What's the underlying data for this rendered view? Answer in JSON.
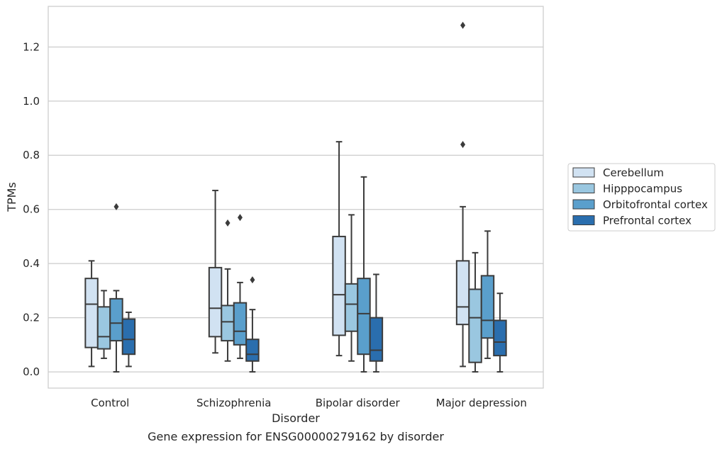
{
  "caption": "Gene expression for ENSG00000279162 by disorder",
  "chart_data": {
    "type": "box",
    "xlabel": "Disorder",
    "ylabel": "TPMs",
    "ylim": [
      -0.06,
      1.35
    ],
    "yticks": [
      "0.0",
      "0.2",
      "0.4",
      "0.6",
      "0.8",
      "1.0",
      "1.2"
    ],
    "grid": "horizontal",
    "legend_position": "right",
    "categories": [
      "Control",
      "Schizophrenia",
      "Bipolar disorder",
      "Major depression"
    ],
    "series": [
      {
        "name": "Cerebellum",
        "color": "#d1e2f2",
        "boxes": [
          {
            "whisker_low": 0.02,
            "q1": 0.09,
            "median": 0.25,
            "q3": 0.345,
            "whisker_high": 0.41,
            "outliers": []
          },
          {
            "whisker_low": 0.07,
            "q1": 0.13,
            "median": 0.235,
            "q3": 0.385,
            "whisker_high": 0.67,
            "outliers": []
          },
          {
            "whisker_low": 0.06,
            "q1": 0.135,
            "median": 0.285,
            "q3": 0.5,
            "whisker_high": 0.85,
            "outliers": []
          },
          {
            "whisker_low": 0.02,
            "q1": 0.175,
            "median": 0.24,
            "q3": 0.41,
            "whisker_high": 0.61,
            "outliers": [
              0.84,
              1.28
            ]
          }
        ]
      },
      {
        "name": "Hipppocampus",
        "color": "#9ac7e0",
        "boxes": [
          {
            "whisker_low": 0.05,
            "q1": 0.085,
            "median": 0.13,
            "q3": 0.24,
            "whisker_high": 0.3,
            "outliers": []
          },
          {
            "whisker_low": 0.04,
            "q1": 0.115,
            "median": 0.185,
            "q3": 0.245,
            "whisker_high": 0.38,
            "outliers": [
              0.55
            ]
          },
          {
            "whisker_low": 0.04,
            "q1": 0.15,
            "median": 0.25,
            "q3": 0.325,
            "whisker_high": 0.58,
            "outliers": []
          },
          {
            "whisker_low": 0.0,
            "q1": 0.035,
            "median": 0.2,
            "q3": 0.305,
            "whisker_high": 0.44,
            "outliers": []
          }
        ]
      },
      {
        "name": "Orbitofrontal cortex",
        "color": "#5a9fcc",
        "boxes": [
          {
            "whisker_low": 0.0,
            "q1": 0.115,
            "median": 0.18,
            "q3": 0.27,
            "whisker_high": 0.3,
            "outliers": [
              0.61
            ]
          },
          {
            "whisker_low": 0.05,
            "q1": 0.1,
            "median": 0.15,
            "q3": 0.255,
            "whisker_high": 0.33,
            "outliers": [
              0.57
            ]
          },
          {
            "whisker_low": 0.0,
            "q1": 0.065,
            "median": 0.215,
            "q3": 0.345,
            "whisker_high": 0.72,
            "outliers": []
          },
          {
            "whisker_low": 0.05,
            "q1": 0.125,
            "median": 0.19,
            "q3": 0.355,
            "whisker_high": 0.52,
            "outliers": []
          }
        ]
      },
      {
        "name": "Prefrontal cortex",
        "color": "#2a6eae",
        "boxes": [
          {
            "whisker_low": 0.02,
            "q1": 0.065,
            "median": 0.12,
            "q3": 0.195,
            "whisker_high": 0.22,
            "outliers": []
          },
          {
            "whisker_low": 0.0,
            "q1": 0.04,
            "median": 0.065,
            "q3": 0.12,
            "whisker_high": 0.23,
            "outliers": [
              0.34
            ]
          },
          {
            "whisker_low": 0.0,
            "q1": 0.04,
            "median": 0.08,
            "q3": 0.2,
            "whisker_high": 0.36,
            "outliers": []
          },
          {
            "whisker_low": 0.0,
            "q1": 0.06,
            "median": 0.11,
            "q3": 0.19,
            "whisker_high": 0.29,
            "outliers": []
          }
        ]
      }
    ]
  }
}
